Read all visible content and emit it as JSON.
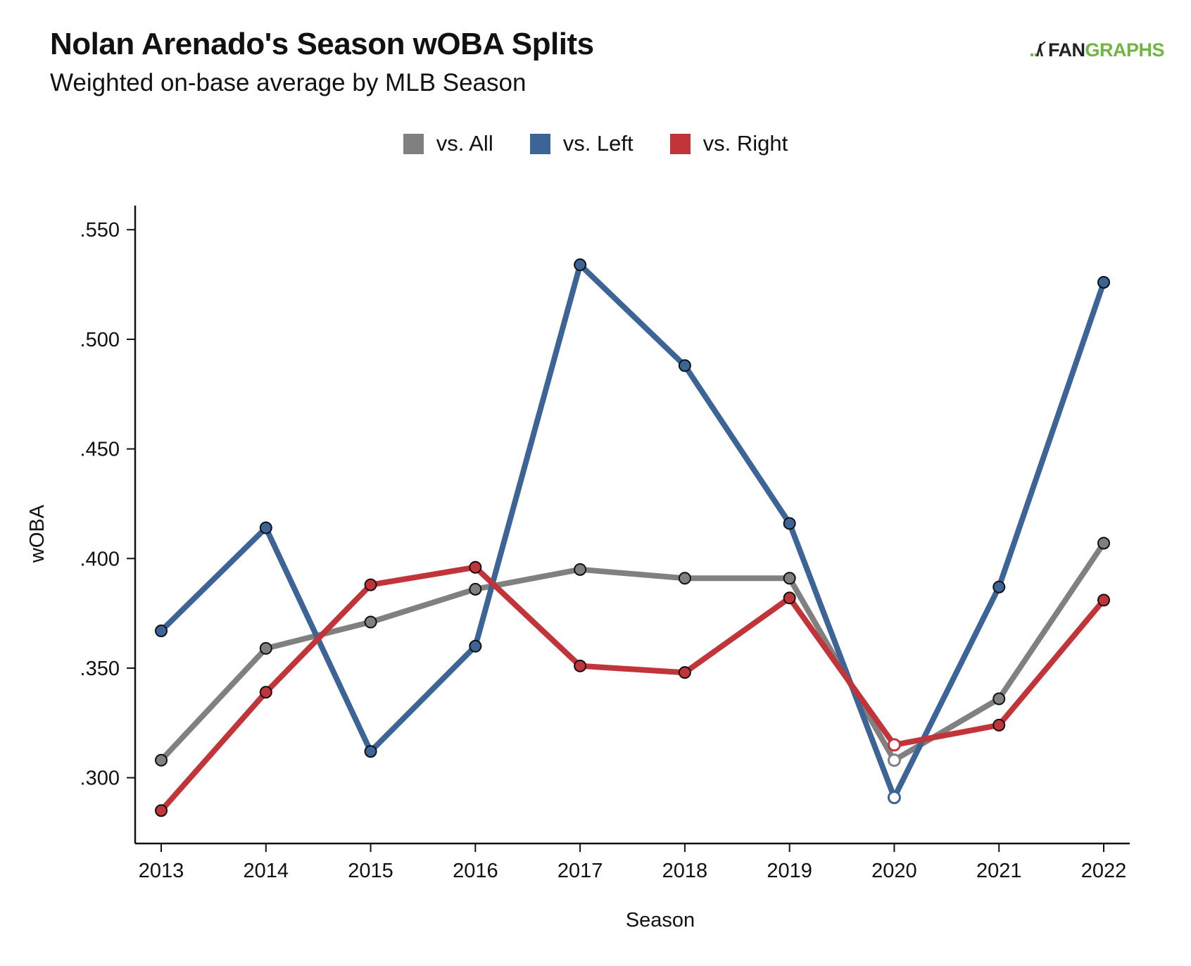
{
  "header": {
    "title": "Nolan Arenado's Season wOBA Splits",
    "subtitle": "Weighted on-base average by MLB Season",
    "logo_fan": "FAN",
    "logo_graphs": "GRAPHS"
  },
  "colors": {
    "all": "#808080",
    "left": "#3d6496",
    "right": "#c1353a",
    "axis": "#111111"
  },
  "chart_data": {
    "type": "line",
    "title": "Nolan Arenado's Season wOBA Splits",
    "subtitle": "Weighted on-base average by MLB Season",
    "xlabel": "Season",
    "ylabel": "wOBA",
    "x": [
      "2013",
      "2014",
      "2015",
      "2016",
      "2017",
      "2018",
      "2019",
      "2020",
      "2021",
      "2022"
    ],
    "ylim": [
      0.27,
      0.561
    ],
    "yticks": [
      0.3,
      0.35,
      0.4,
      0.45,
      0.5,
      0.55
    ],
    "ytick_labels": [
      ".300",
      ".350",
      ".400",
      ".450",
      ".500",
      ".550"
    ],
    "grid": false,
    "legend_position": "top-center",
    "series": [
      {
        "name": "vs. All",
        "color": "#808080",
        "values": [
          0.308,
          0.359,
          0.371,
          0.386,
          0.395,
          0.391,
          0.391,
          0.308,
          0.336,
          0.407
        ],
        "open_markers": [
          7
        ]
      },
      {
        "name": "vs. Left",
        "color": "#3d6496",
        "values": [
          0.367,
          0.414,
          0.312,
          0.36,
          0.534,
          0.488,
          0.416,
          0.291,
          0.387,
          0.526
        ],
        "open_markers": [
          7
        ]
      },
      {
        "name": "vs. Right",
        "color": "#c1353a",
        "values": [
          0.285,
          0.339,
          0.388,
          0.396,
          0.351,
          0.348,
          0.382,
          0.315,
          0.324,
          0.381
        ],
        "open_markers": [
          7
        ]
      }
    ]
  }
}
